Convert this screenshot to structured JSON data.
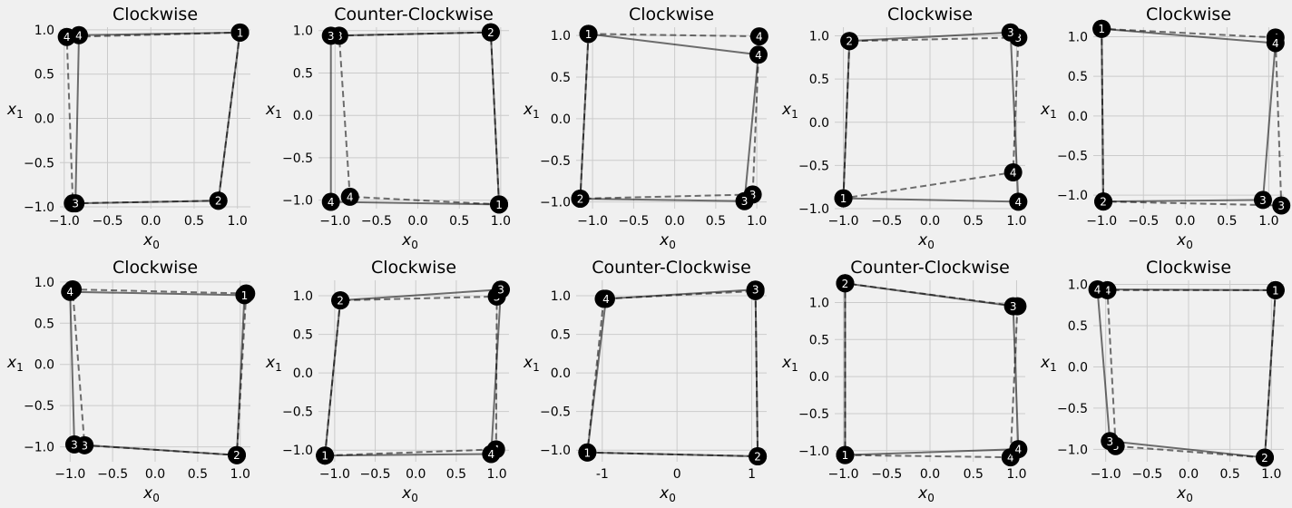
{
  "chart_data": [
    {
      "type": "line",
      "title": "Clockwise",
      "xlabel": "x",
      "xlabel_sub": "0",
      "ylabel": "x",
      "ylabel_sub": "1",
      "xlim": [
        -1.05,
        1.15
      ],
      "ylim": [
        -1.02,
        1.03
      ],
      "xticks": [
        -1.0,
        -0.5,
        0.0,
        0.5,
        1.0
      ],
      "yticks": [
        -1.0,
        -0.5,
        0.0,
        0.5,
        1.0
      ],
      "series": [
        {
          "style": "solid",
          "points": [
            {
              "x": 1.03,
              "y": 0.97,
              "label": "1"
            },
            {
              "x": 0.78,
              "y": -0.93,
              "label": "2"
            },
            {
              "x": -0.87,
              "y": -0.96,
              "label": "3"
            },
            {
              "x": -0.83,
              "y": 0.94,
              "label": "4"
            }
          ]
        },
        {
          "style": "dashed",
          "points": [
            {
              "x": 1.03,
              "y": 0.97,
              "label": "1"
            },
            {
              "x": 0.78,
              "y": -0.93,
              "label": "2"
            },
            {
              "x": -0.9,
              "y": -0.96,
              "label": "3"
            },
            {
              "x": -0.97,
              "y": 0.92,
              "label": "4"
            }
          ]
        }
      ]
    },
    {
      "type": "line",
      "title": "Counter-Clockwise",
      "xlabel": "x",
      "xlabel_sub": "0",
      "ylabel": "x",
      "ylabel_sub": "1",
      "xlim": [
        -1.2,
        1.1
      ],
      "ylim": [
        -1.1,
        1.04
      ],
      "xticks": [
        -1.0,
        -0.5,
        0.0,
        0.5,
        1.0
      ],
      "yticks": [
        -1.0,
        -0.5,
        0.0,
        0.5,
        1.0
      ],
      "series": [
        {
          "style": "solid",
          "points": [
            {
              "x": 0.98,
              "y": -1.05,
              "label": "1"
            },
            {
              "x": 0.88,
              "y": 0.98,
              "label": "2"
            },
            {
              "x": -1.05,
              "y": 0.94,
              "label": "3"
            },
            {
              "x": -1.05,
              "y": -1.02,
              "label": "4"
            }
          ]
        },
        {
          "style": "dashed",
          "points": [
            {
              "x": 0.98,
              "y": -1.05,
              "label": "1"
            },
            {
              "x": 0.88,
              "y": 0.98,
              "label": "2"
            },
            {
              "x": -0.95,
              "y": 0.94,
              "label": "3"
            },
            {
              "x": -0.82,
              "y": -0.96,
              "label": "4"
            }
          ]
        }
      ]
    },
    {
      "type": "line",
      "title": "Clockwise",
      "xlabel": "x",
      "xlabel_sub": "0",
      "ylabel": "x",
      "ylabel_sub": "1",
      "xlim": [
        -1.2,
        1.12
      ],
      "ylim": [
        -1.08,
        1.1
      ],
      "xticks": [
        -1.0,
        -0.5,
        0.0,
        0.5,
        1.0
      ],
      "yticks": [
        -1.0,
        -0.5,
        0.0,
        0.5,
        1.0
      ],
      "series": [
        {
          "style": "solid",
          "points": [
            {
              "x": -1.05,
              "y": 1.02,
              "label": "1"
            },
            {
              "x": -1.15,
              "y": -0.96,
              "label": "2"
            },
            {
              "x": 0.85,
              "y": -0.99,
              "label": "3"
            },
            {
              "x": 1.02,
              "y": 0.77,
              "label": "4"
            }
          ]
        },
        {
          "style": "dashed",
          "points": [
            {
              "x": -1.05,
              "y": 1.02,
              "label": "1"
            },
            {
              "x": -1.15,
              "y": -0.96,
              "label": "2"
            },
            {
              "x": 0.95,
              "y": -0.91,
              "label": "3"
            },
            {
              "x": 1.03,
              "y": 0.99,
              "label": "4"
            }
          ]
        }
      ]
    },
    {
      "type": "line",
      "title": "Clockwise",
      "xlabel": "x",
      "xlabel_sub": "0",
      "ylabel": "x",
      "ylabel_sub": "1",
      "xlim": [
        -1.1,
        1.1
      ],
      "ylim": [
        -1.0,
        1.1
      ],
      "xticks": [
        -1.0,
        -0.5,
        0.0,
        0.5,
        1.0
      ],
      "yticks": [
        -1.0,
        -0.5,
        0.0,
        0.5,
        1.0
      ],
      "series": [
        {
          "style": "solid",
          "points": [
            {
              "x": -1.0,
              "y": -0.88,
              "label": "1"
            },
            {
              "x": -0.93,
              "y": 0.94,
              "label": "2"
            },
            {
              "x": 0.93,
              "y": 1.04,
              "label": "3"
            },
            {
              "x": 1.02,
              "y": -0.92,
              "label": "4"
            }
          ]
        },
        {
          "style": "dashed",
          "points": [
            {
              "x": -1.0,
              "y": -0.88,
              "label": "1"
            },
            {
              "x": -0.93,
              "y": 0.94,
              "label": "2"
            },
            {
              "x": 1.02,
              "y": 0.98,
              "label": "3"
            },
            {
              "x": 0.96,
              "y": -0.58,
              "label": "4"
            }
          ]
        }
      ]
    },
    {
      "type": "line",
      "title": "Clockwise",
      "xlabel": "x",
      "xlabel_sub": "0",
      "ylabel": "x",
      "ylabel_sub": "1",
      "xlim": [
        -1.1,
        1.18
      ],
      "ylim": [
        -1.17,
        1.12
      ],
      "xticks": [
        -1.0,
        -0.5,
        0.0,
        0.5,
        1.0
      ],
      "yticks": [
        -1.0,
        -0.5,
        0.0,
        0.5,
        1.0
      ],
      "series": [
        {
          "style": "solid",
          "points": [
            {
              "x": -1.0,
              "y": 1.1,
              "label": "1"
            },
            {
              "x": -0.98,
              "y": -1.08,
              "label": "2"
            },
            {
              "x": 0.93,
              "y": -1.06,
              "label": "3"
            },
            {
              "x": 1.08,
              "y": 0.92,
              "label": "4"
            }
          ]
        },
        {
          "style": "dashed",
          "points": [
            {
              "x": -1.0,
              "y": 1.1,
              "label": "1"
            },
            {
              "x": -0.98,
              "y": -1.08,
              "label": "2"
            },
            {
              "x": 1.15,
              "y": -1.13,
              "label": "3"
            },
            {
              "x": 1.08,
              "y": 0.99,
              "label": "4"
            }
          ]
        }
      ]
    },
    {
      "type": "line",
      "title": "Clockwise",
      "xlabel": "x",
      "xlabel_sub": "0",
      "ylabel": "x",
      "ylabel_sub": "1",
      "xlim": [
        -1.12,
        1.12
      ],
      "ylim": [
        -1.18,
        1.02
      ],
      "xticks": [
        -1.0,
        -0.5,
        0.0,
        0.5,
        1.0
      ],
      "yticks": [
        -1.0,
        -0.5,
        0.0,
        0.5,
        1.0
      ],
      "series": [
        {
          "style": "solid",
          "points": [
            {
              "x": 1.05,
              "y": 0.84,
              "label": "1"
            },
            {
              "x": 0.96,
              "y": -1.1,
              "label": "2"
            },
            {
              "x": -0.95,
              "y": -0.97,
              "label": "3"
            },
            {
              "x": -1.0,
              "y": 0.88,
              "label": "4"
            }
          ]
        },
        {
          "style": "dashed",
          "points": [
            {
              "x": 1.07,
              "y": 0.86,
              "label": "1"
            },
            {
              "x": 0.96,
              "y": -1.1,
              "label": "2"
            },
            {
              "x": -0.83,
              "y": -0.98,
              "label": "3"
            },
            {
              "x": -0.97,
              "y": 0.91,
              "label": "4"
            }
          ]
        }
      ]
    },
    {
      "type": "line",
      "title": "Clockwise",
      "xlabel": "x",
      "xlabel_sub": "0",
      "ylabel": "x",
      "ylabel_sub": "1",
      "xlim": [
        -1.2,
        1.15
      ],
      "ylim": [
        -1.15,
        1.2
      ],
      "xticks": [
        -1.0,
        -0.5,
        0.0,
        0.5,
        1.0
      ],
      "yticks": [
        -1.0,
        -0.5,
        0.0,
        0.5,
        1.0
      ],
      "series": [
        {
          "style": "solid",
          "points": [
            {
              "x": -1.12,
              "y": -1.07,
              "label": "1"
            },
            {
              "x": -0.93,
              "y": 0.94,
              "label": "2"
            },
            {
              "x": 1.05,
              "y": 1.08,
              "label": "3"
            },
            {
              "x": 0.93,
              "y": -1.05,
              "label": "4"
            }
          ]
        },
        {
          "style": "dashed",
          "points": [
            {
              "x": -1.12,
              "y": -1.07,
              "label": "1"
            },
            {
              "x": -0.93,
              "y": 0.94,
              "label": "2"
            },
            {
              "x": 1.0,
              "y": 0.99,
              "label": "3"
            },
            {
              "x": 0.99,
              "y": -0.99,
              "label": "4"
            }
          ]
        }
      ]
    },
    {
      "type": "line",
      "title": "Counter-Clockwise",
      "xlabel": "x",
      "xlabel_sub": "0",
      "ylabel": "x",
      "ylabel_sub": "1",
      "xlim": [
        -1.35,
        1.2
      ],
      "ylim": [
        -1.15,
        1.2
      ],
      "xticks": [
        -1,
        0,
        1
      ],
      "yticks": [
        -1.0,
        -0.5,
        0.0,
        0.5,
        1.0
      ],
      "series": [
        {
          "style": "solid",
          "points": [
            {
              "x": -1.2,
              "y": -1.03,
              "label": "1"
            },
            {
              "x": 1.08,
              "y": -1.08,
              "label": "2"
            },
            {
              "x": 1.05,
              "y": 1.08,
              "label": "3"
            },
            {
              "x": -0.95,
              "y": 0.96,
              "label": "4"
            }
          ]
        },
        {
          "style": "dashed",
          "points": [
            {
              "x": -1.2,
              "y": -1.03,
              "label": "1"
            },
            {
              "x": 1.08,
              "y": -1.08,
              "label": "2"
            },
            {
              "x": 1.05,
              "y": 1.06,
              "label": "3"
            },
            {
              "x": -0.98,
              "y": 0.96,
              "label": "4"
            }
          ]
        }
      ]
    },
    {
      "type": "line",
      "title": "Counter-Clockwise",
      "xlabel": "x",
      "xlabel_sub": "0",
      "ylabel": "x",
      "ylabel_sub": "1",
      "xlim": [
        -1.1,
        1.1
      ],
      "ylim": [
        -1.15,
        1.3
      ],
      "xticks": [
        -1.0,
        -0.5,
        0.0,
        0.5,
        1.0
      ],
      "yticks": [
        -1.0,
        -0.5,
        0.0,
        0.5,
        1.0
      ],
      "series": [
        {
          "style": "solid",
          "points": [
            {
              "x": -0.98,
              "y": -1.06,
              "label": "1"
            },
            {
              "x": 1.02,
              "y": -0.98,
              "label": "4"
            },
            {
              "x": 0.96,
              "y": 0.95,
              "label": "3"
            },
            {
              "x": -0.98,
              "y": 1.26,
              "label": "2"
            }
          ]
        },
        {
          "style": "dashed",
          "points": [
            {
              "x": -0.98,
              "y": -1.06,
              "label": "1"
            },
            {
              "x": 0.93,
              "y": -1.09,
              "label": "4"
            },
            {
              "x": 1.01,
              "y": 0.95,
              "label": "3"
            },
            {
              "x": -0.98,
              "y": 1.26,
              "label": "2"
            }
          ]
        }
      ]
    },
    {
      "type": "line",
      "title": "Clockwise",
      "xlabel": "x",
      "xlabel_sub": "0",
      "ylabel": "x",
      "ylabel_sub": "1",
      "xlim": [
        -1.15,
        1.15
      ],
      "ylim": [
        -1.15,
        1.05
      ],
      "xticks": [
        -1.0,
        -0.5,
        0.0,
        0.5,
        1.0
      ],
      "yticks": [
        -1.0,
        -0.5,
        0.0,
        0.5,
        1.0
      ],
      "series": [
        {
          "style": "solid",
          "points": [
            {
              "x": 1.05,
              "y": 0.93,
              "label": "1"
            },
            {
              "x": 0.92,
              "y": -1.1,
              "label": "2"
            },
            {
              "x": -0.95,
              "y": -0.9,
              "label": "3"
            },
            {
              "x": -1.1,
              "y": 0.94,
              "label": "4"
            }
          ]
        },
        {
          "style": "dashed",
          "points": [
            {
              "x": 1.05,
              "y": 0.93,
              "label": "1"
            },
            {
              "x": 0.92,
              "y": -1.1,
              "label": "2"
            },
            {
              "x": -0.88,
              "y": -0.96,
              "label": "3"
            },
            {
              "x": -0.98,
              "y": 0.93,
              "label": "4"
            }
          ]
        }
      ]
    }
  ]
}
